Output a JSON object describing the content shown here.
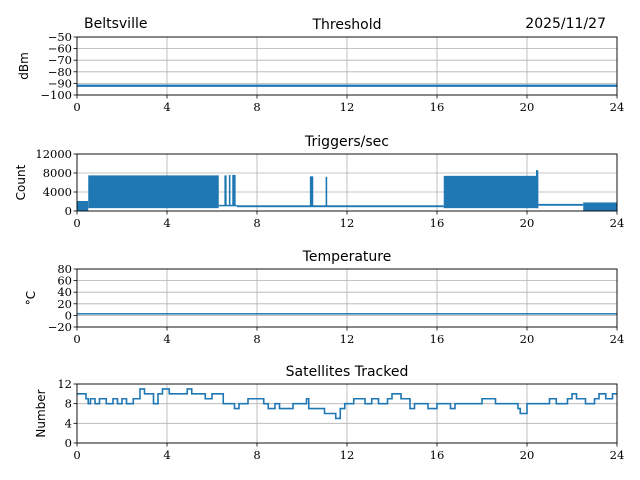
{
  "header": {
    "station": "Beltsville",
    "date": "2025/11/27"
  },
  "colors": {
    "series": "#1f77b4",
    "grid": "#b0b0b0"
  },
  "chart_data": [
    {
      "type": "line",
      "title": "Threshold",
      "ylabel": "dBm",
      "xlim": [
        0,
        24
      ],
      "ylim": [
        -100,
        -50
      ],
      "xticks": [
        0,
        4,
        8,
        12,
        16,
        20,
        24
      ],
      "yticks": [
        -100,
        -90,
        -80,
        -70,
        -60,
        -50
      ],
      "ytick_labels": [
        "−100",
        "−90",
        "−80",
        "−70",
        "−60",
        "−50"
      ],
      "grid": true,
      "bands": [
        {
          "x0": 0,
          "x1": 24,
          "min": -93,
          "max": -91
        }
      ]
    },
    {
      "type": "line",
      "title": "Triggers/sec",
      "ylabel": "Count",
      "xlim": [
        0,
        24
      ],
      "ylim": [
        0,
        12000
      ],
      "xticks": [
        0,
        4,
        8,
        12,
        16,
        20,
        24
      ],
      "yticks": [
        0,
        4000,
        8000,
        12000
      ],
      "ytick_labels": [
        "0",
        "4000",
        "8000",
        "12000"
      ],
      "grid": true,
      "bands": [
        {
          "x0": 0,
          "x1": 0.5,
          "min": 0,
          "max": 2100
        },
        {
          "x0": 0.5,
          "x1": 6.3,
          "min": 600,
          "max": 7500
        },
        {
          "x0": 6.3,
          "x1": 7.1,
          "min": 1100,
          "max": 1300
        },
        {
          "x0": 6.55,
          "x1": 6.65,
          "min": 1100,
          "max": 7500
        },
        {
          "x0": 6.75,
          "x1": 6.82,
          "min": 1100,
          "max": 7600
        },
        {
          "x0": 6.9,
          "x1": 7.05,
          "min": 1100,
          "max": 7600
        },
        {
          "x0": 7.1,
          "x1": 16.3,
          "min": 800,
          "max": 1200
        },
        {
          "x0": 10.35,
          "x1": 10.5,
          "min": 900,
          "max": 7300
        },
        {
          "x0": 11.05,
          "x1": 11.12,
          "min": 900,
          "max": 7200
        },
        {
          "x0": 16.3,
          "x1": 20.5,
          "min": 600,
          "max": 7400
        },
        {
          "x0": 20.4,
          "x1": 20.5,
          "min": 600,
          "max": 8600
        },
        {
          "x0": 20.5,
          "x1": 22.5,
          "min": 1100,
          "max": 1500
        },
        {
          "x0": 22.5,
          "x1": 24,
          "min": 0,
          "max": 1800
        }
      ]
    },
    {
      "type": "line",
      "title": "Temperature",
      "ylabel": "°C",
      "xlim": [
        0,
        24
      ],
      "ylim": [
        -20,
        80
      ],
      "xticks": [
        0,
        4,
        8,
        12,
        16,
        20,
        24
      ],
      "yticks": [
        -20,
        0,
        20,
        40,
        60,
        80
      ],
      "ytick_labels": [
        "−20",
        "0",
        "20",
        "40",
        "60",
        "80"
      ],
      "grid": true,
      "bands": [
        {
          "x0": 0,
          "x1": 24,
          "min": 2,
          "max": 4
        }
      ]
    },
    {
      "type": "line",
      "title": "Satellites Tracked",
      "ylabel": "Number",
      "xlim": [
        0,
        24
      ],
      "ylim": [
        0,
        12
      ],
      "xticks": [
        0,
        4,
        8,
        12,
        16,
        20,
        24
      ],
      "yticks": [
        0,
        4,
        8,
        12
      ],
      "ytick_labels": [
        "0",
        "4",
        "8",
        "12"
      ],
      "grid": true,
      "step": true,
      "x": [
        0,
        0.4,
        0.5,
        0.6,
        0.8,
        1.0,
        1.3,
        1.6,
        1.8,
        2.0,
        2.2,
        2.5,
        2.8,
        3.0,
        3.4,
        3.6,
        3.8,
        4.1,
        4.9,
        5.1,
        5.7,
        6.0,
        6.5,
        7.0,
        7.2,
        7.6,
        8.3,
        8.5,
        8.8,
        9.0,
        9.6,
        10.2,
        10.3,
        10.5,
        11.0,
        11.5,
        11.7,
        11.9,
        12.3,
        12.8,
        13.1,
        13.4,
        13.8,
        14.0,
        14.4,
        14.8,
        15.0,
        15.6,
        16.0,
        16.6,
        16.8,
        17.4,
        18.0,
        18.6,
        19.6,
        19.7,
        20.0,
        21.0,
        21.3,
        21.8,
        22.0,
        22.2,
        22.6,
        23.0,
        23.2,
        23.5,
        23.8,
        24.0
      ],
      "y": [
        10,
        9,
        8,
        9,
        8,
        9,
        8,
        9,
        8,
        9,
        8,
        9,
        11,
        10,
        8,
        10,
        11,
        10,
        11,
        10,
        9,
        10,
        8,
        7,
        8,
        9,
        8,
        7,
        8,
        7,
        8,
        9,
        7,
        7,
        6,
        5,
        7,
        8,
        9,
        8,
        9,
        8,
        9,
        10,
        9,
        7,
        8,
        7,
        8,
        7,
        8,
        8,
        9,
        8,
        7,
        6,
        8,
        9,
        8,
        9,
        10,
        9,
        8,
        9,
        10,
        9,
        10,
        10
      ]
    }
  ]
}
